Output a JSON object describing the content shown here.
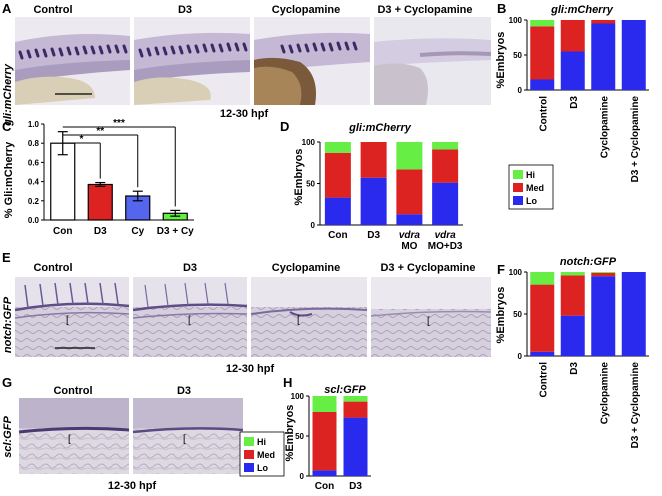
{
  "panels": {
    "A": {
      "letter": "A",
      "row_label": "gli:mCherry",
      "columns": [
        "Control",
        "D3",
        "Cyclopamine",
        "D3 + Cyclopamine"
      ],
      "time_caption": "12-30 hpf"
    },
    "B": {
      "letter": "B",
      "title": "gli:mCherry",
      "ylabel": "%Embryos",
      "yticks": [
        "0",
        "50",
        "100"
      ],
      "legend": [
        "Hi",
        "Med",
        "Lo"
      ]
    },
    "C": {
      "letter": "C",
      "ylabel": "% Gli:mCherry",
      "yticks": [
        "0.0",
        "0.2",
        "0.4",
        "0.6",
        "0.8",
        "1.0"
      ],
      "sig": [
        "*",
        "**",
        "***"
      ]
    },
    "D": {
      "letter": "D",
      "title": "gli:mCherry",
      "ylabel": "%Embryos",
      "yticks": [
        "0",
        "50",
        "100"
      ],
      "xlabels": [
        [
          "Con"
        ],
        [
          "D3"
        ],
        [
          "vdra",
          "MO"
        ],
        [
          "vdra",
          "MO+D3"
        ]
      ]
    },
    "E": {
      "letter": "E",
      "row_label": "notch:GFP",
      "columns": [
        "Control",
        "D3",
        "Cyclopamine",
        "D3 + Cyclopamine"
      ],
      "time_caption": "12-30 hpf"
    },
    "F": {
      "letter": "F",
      "title": "notch:GFP",
      "ylabel": "%Embryos",
      "yticks": [
        "0",
        "50",
        "100"
      ]
    },
    "G": {
      "letter": "G",
      "row_label": "scl:GFP",
      "columns": [
        "Control",
        "D3"
      ],
      "time_caption": "12-30 hpf"
    },
    "H": {
      "letter": "H",
      "title": "scl:GFP",
      "ylabel": "%Embryos",
      "yticks": [
        "0",
        "50",
        "100"
      ],
      "legend": [
        "Hi",
        "Med",
        "Lo"
      ]
    }
  },
  "colors": {
    "hi": "#66ee44",
    "med": "#dd2222",
    "lo": "#2a2aee",
    "white": "#ffffff",
    "cy": "#5566ee",
    "d3bar": "#dd2222",
    "d3cy": "#66ee44"
  },
  "chart_data": [
    {
      "id": "B",
      "type": "bar",
      "stacked": true,
      "categories": [
        "Control",
        "D3",
        "Cyclopamine",
        "D3 + Cyclopamine"
      ],
      "series": [
        {
          "name": "Lo",
          "values": [
            15,
            55,
            95,
            100
          ]
        },
        {
          "name": "Med",
          "values": [
            76,
            45,
            5,
            0
          ]
        },
        {
          "name": "Hi",
          "values": [
            9,
            0,
            0,
            0
          ]
        }
      ],
      "ylim": [
        0,
        100
      ],
      "ylabel": "%Embryos"
    },
    {
      "id": "C",
      "type": "bar",
      "categories": [
        "Con",
        "D3",
        "Cy",
        "D3 + Cy"
      ],
      "values": [
        0.8,
        0.37,
        0.25,
        0.07
      ],
      "errors": [
        0.12,
        0.02,
        0.05,
        0.03
      ],
      "ylim": [
        0,
        1.0
      ],
      "ylabel": "% Gli:mCherry"
    },
    {
      "id": "D",
      "type": "bar",
      "stacked": true,
      "categories": [
        "Con",
        "D3",
        "vdra MO",
        "vdra MO+D3"
      ],
      "series": [
        {
          "name": "Lo",
          "values": [
            33,
            57,
            13,
            51
          ]
        },
        {
          "name": "Med",
          "values": [
            54,
            43,
            54,
            40
          ]
        },
        {
          "name": "Hi",
          "values": [
            13,
            0,
            33,
            9
          ]
        }
      ],
      "ylim": [
        0,
        100
      ],
      "ylabel": "%Embryos"
    },
    {
      "id": "F",
      "type": "bar",
      "stacked": true,
      "categories": [
        "Control",
        "D3",
        "Cyclopamine",
        "D3 + Cyclopamine"
      ],
      "series": [
        {
          "name": "Lo",
          "values": [
            5,
            48,
            95,
            100
          ]
        },
        {
          "name": "Med",
          "values": [
            80,
            48,
            4,
            0
          ]
        },
        {
          "name": "Hi",
          "values": [
            15,
            4,
            1,
            0
          ]
        }
      ],
      "ylim": [
        0,
        100
      ],
      "ylabel": "%Embryos"
    },
    {
      "id": "H",
      "type": "bar",
      "stacked": true,
      "categories": [
        "Con",
        "D3"
      ],
      "series": [
        {
          "name": "Lo",
          "values": [
            7,
            73
          ]
        },
        {
          "name": "Med",
          "values": [
            73,
            20
          ]
        },
        {
          "name": "Hi",
          "values": [
            20,
            7
          ]
        }
      ],
      "ylim": [
        0,
        100
      ],
      "ylabel": "%Embryos"
    }
  ]
}
